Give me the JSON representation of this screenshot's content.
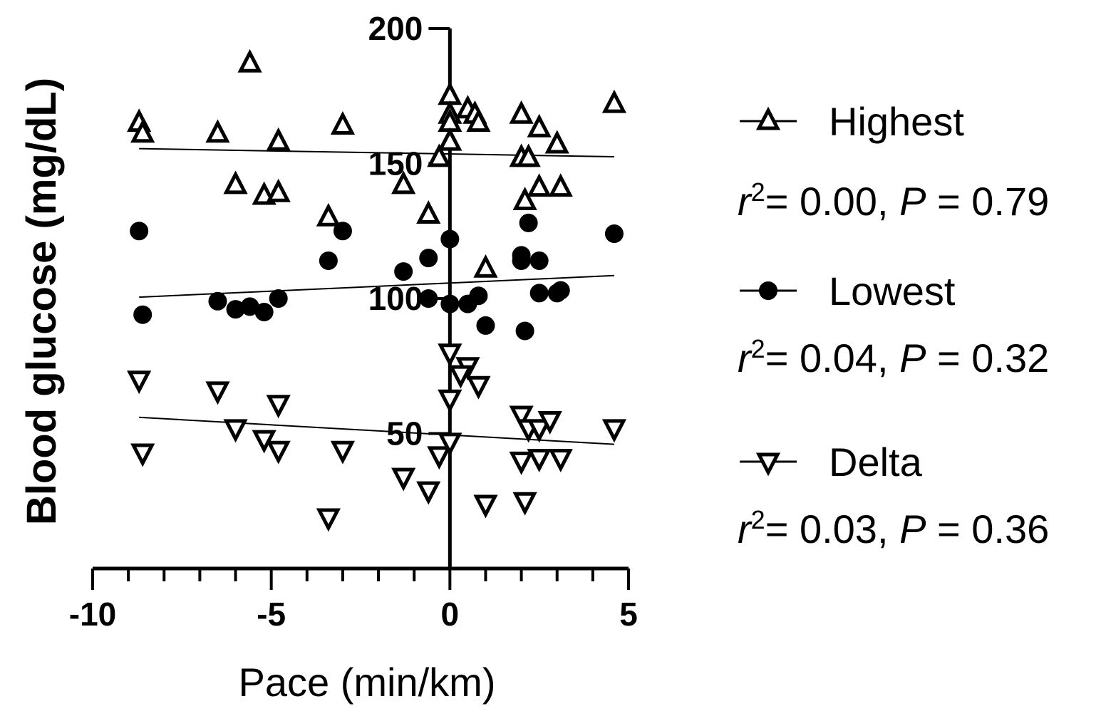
{
  "chart_data": {
    "type": "scatter",
    "xlabel": "Pace (min/km)",
    "ylabel": "Blood glucose (mg/dL)",
    "xlim": [
      -10,
      5
    ],
    "ylim": [
      0,
      200
    ],
    "x_ticks": [
      -10,
      -5,
      0,
      5
    ],
    "y_ticks": [
      50,
      100,
      150,
      200
    ],
    "x_tick_labels": [
      "-10",
      "-5",
      "0",
      "5"
    ],
    "y_tick_labels": [
      "50",
      "100",
      "150",
      "200"
    ],
    "grid": false,
    "legend_position": "right",
    "series": [
      {
        "name": "Highest",
        "marker": "triangle-up-open",
        "stat": "= 0.00, P = 0.79",
        "fit": [
          [
            -8.7,
            155.5
          ],
          [
            4.6,
            152.5
          ]
        ],
        "points": [
          [
            -8.7,
            165
          ],
          [
            -8.6,
            161
          ],
          [
            -5.6,
            187
          ],
          [
            -6.5,
            161
          ],
          [
            -4.8,
            158
          ],
          [
            -3.0,
            164
          ],
          [
            -6.0,
            142
          ],
          [
            -5.2,
            138
          ],
          [
            -4.8,
            139
          ],
          [
            -3.4,
            130
          ],
          [
            -1.3,
            142
          ],
          [
            -0.6,
            131
          ],
          [
            -0.3,
            152
          ],
          [
            0.0,
            175
          ],
          [
            0.0,
            168
          ],
          [
            0.0,
            165
          ],
          [
            0.0,
            158
          ],
          [
            0.5,
            170
          ],
          [
            0.7,
            168
          ],
          [
            0.8,
            165
          ],
          [
            2.0,
            168
          ],
          [
            2.5,
            163
          ],
          [
            3.0,
            157
          ],
          [
            2.0,
            152
          ],
          [
            2.2,
            152
          ],
          [
            3.1,
            141
          ],
          [
            2.5,
            141
          ],
          [
            2.1,
            136
          ],
          [
            1.0,
            111
          ],
          [
            4.6,
            172
          ]
        ]
      },
      {
        "name": "Lowest",
        "marker": "circle-filled",
        "stat": "= 0.04, P = 0.32",
        "fit": [
          [
            -8.7,
            100.5
          ],
          [
            4.6,
            108.5
          ]
        ],
        "points": [
          [
            -8.7,
            125
          ],
          [
            -8.6,
            94
          ],
          [
            -6.5,
            99
          ],
          [
            -6.0,
            96
          ],
          [
            -5.6,
            97
          ],
          [
            -5.2,
            95
          ],
          [
            -4.8,
            100
          ],
          [
            -3.4,
            114
          ],
          [
            -3.0,
            125
          ],
          [
            -1.3,
            110
          ],
          [
            -0.6,
            115
          ],
          [
            -0.6,
            100
          ],
          [
            0.0,
            122
          ],
          [
            0.0,
            98
          ],
          [
            0.5,
            98
          ],
          [
            0.8,
            101
          ],
          [
            1.0,
            90
          ],
          [
            2.0,
            116
          ],
          [
            2.5,
            114
          ],
          [
            2.0,
            114
          ],
          [
            2.2,
            128
          ],
          [
            2.5,
            102
          ],
          [
            3.0,
            102
          ],
          [
            3.1,
            103
          ],
          [
            2.1,
            88
          ],
          [
            4.6,
            124
          ]
        ]
      },
      {
        "name": "Delta",
        "marker": "triangle-down-open",
        "stat": "= 0.03, P = 0.36",
        "fit": [
          [
            -8.7,
            56
          ],
          [
            4.6,
            46
          ]
        ],
        "points": [
          [
            -8.7,
            70
          ],
          [
            -8.6,
            43
          ],
          [
            -6.5,
            66
          ],
          [
            -6.0,
            52
          ],
          [
            -5.2,
            48
          ],
          [
            -4.8,
            44
          ],
          [
            -4.8,
            61
          ],
          [
            -3.4,
            19
          ],
          [
            -3.0,
            44
          ],
          [
            -1.3,
            34
          ],
          [
            -0.6,
            29
          ],
          [
            -0.3,
            42
          ],
          [
            0.0,
            80
          ],
          [
            0.0,
            63
          ],
          [
            0.0,
            47
          ],
          [
            0.5,
            75
          ],
          [
            0.3,
            72
          ],
          [
            0.8,
            68
          ],
          [
            1.0,
            24
          ],
          [
            2.0,
            57
          ],
          [
            2.2,
            52
          ],
          [
            2.5,
            52
          ],
          [
            2.8,
            55
          ],
          [
            2.0,
            40
          ],
          [
            2.5,
            41
          ],
          [
            3.1,
            41
          ],
          [
            2.1,
            25
          ],
          [
            4.6,
            52
          ]
        ]
      }
    ]
  }
}
